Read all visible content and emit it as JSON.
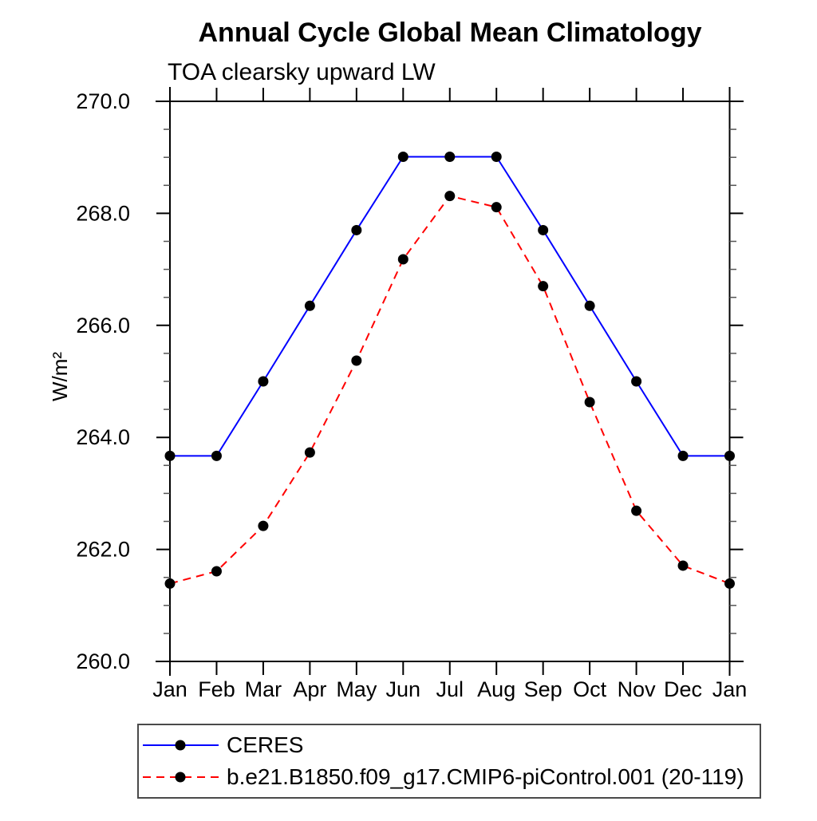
{
  "chart_data": {
    "type": "line",
    "title": "Annual Cycle Global Mean Climatology",
    "subtitle": "TOA clearsky upward LW",
    "ylabel": "W/m²",
    "categories": [
      "Jan",
      "Feb",
      "Mar",
      "Apr",
      "May",
      "Jun",
      "Jul",
      "Aug",
      "Sep",
      "Oct",
      "Nov",
      "Dec",
      "Jan"
    ],
    "ylim": [
      260.0,
      270.0
    ],
    "y_major_step": 2.0,
    "y_minor_step": 0.5,
    "y_tick_labels": [
      "260.0",
      "262.0",
      "264.0",
      "266.0",
      "268.0",
      "270.0"
    ],
    "grid": false,
    "legend_position": "bottom-left",
    "marker": {
      "shape": "filled-circle",
      "color": "#000000"
    },
    "series": [
      {
        "name": "CERES",
        "color": "#0000ff",
        "style": "solid",
        "values": [
          263.67,
          263.67,
          265.0,
          266.35,
          267.7,
          269.01,
          269.01,
          269.01,
          267.7,
          266.35,
          265.0,
          263.67,
          263.67
        ]
      },
      {
        "name": "b.e21.B1850.f09_g17.CMIP6-piControl.001 (20-119)",
        "color": "#ff0000",
        "style": "dashed",
        "values": [
          261.39,
          261.61,
          262.42,
          263.73,
          265.37,
          267.18,
          268.31,
          268.11,
          266.7,
          264.63,
          262.69,
          261.71,
          261.39
        ]
      }
    ]
  }
}
